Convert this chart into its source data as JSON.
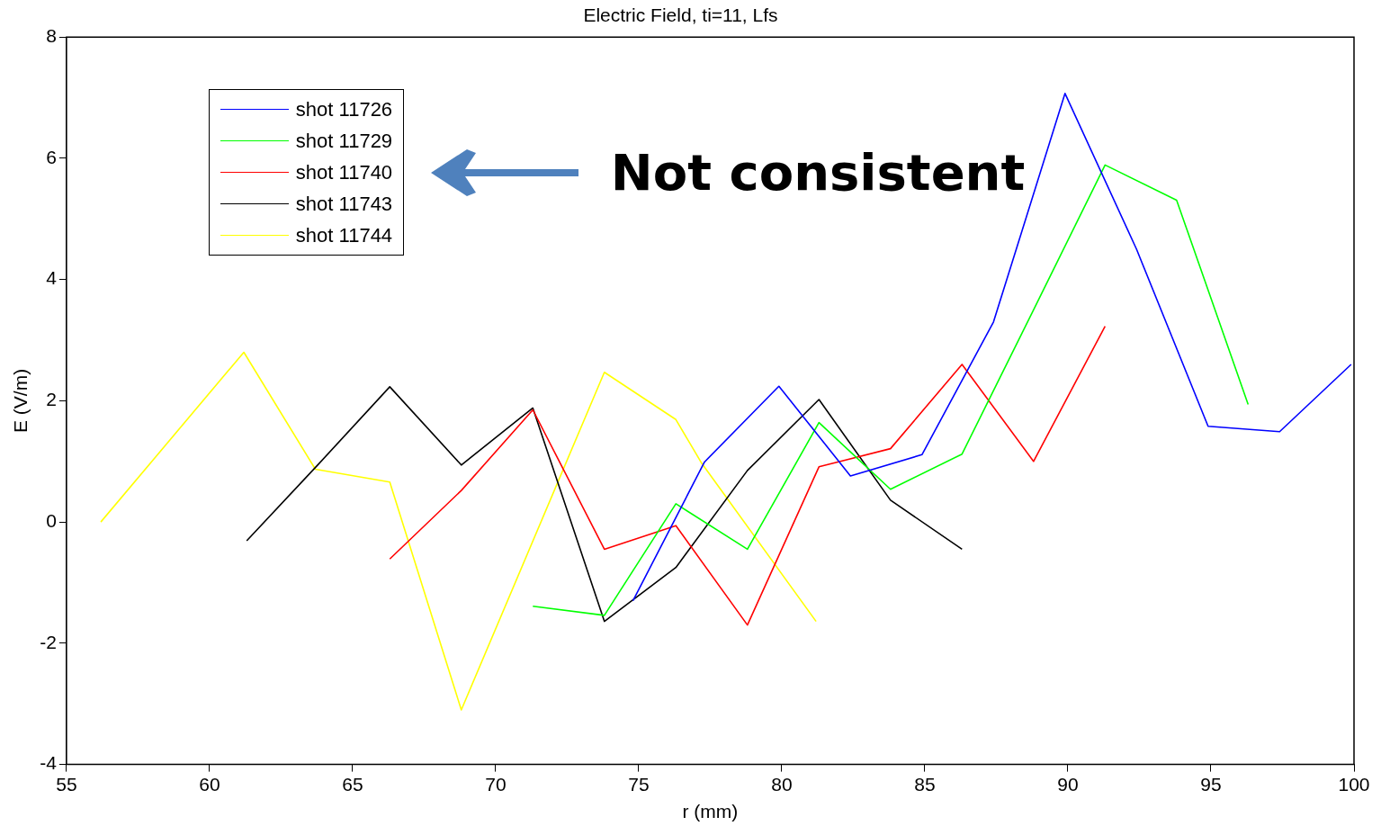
{
  "chart_data": {
    "type": "line",
    "title": "Electric Field, ti=11, Lfs",
    "xlabel": "r (mm)",
    "ylabel": "E (V/m)",
    "xlim": [
      55,
      100
    ],
    "xticks": [
      55,
      60,
      65,
      70,
      75,
      80,
      85,
      90,
      95,
      100
    ],
    "ylim": [
      -4,
      8
    ],
    "yticks": [
      -4,
      -2,
      0,
      2,
      4,
      6,
      8
    ],
    "grid": false,
    "legend": "top left",
    "marker": "none",
    "line_style": "solid",
    "annotations": [
      "Not consistent"
    ],
    "series": [
      {
        "name": "shot 11726",
        "color": "#0000ff",
        "x": [
          74.8,
          77.3,
          79.9,
          82.4,
          84.9,
          87.4,
          89.9,
          92.4,
          94.9,
          97.4,
          99.9
        ],
        "values": [
          -1.3,
          0.99,
          2.24,
          0.76,
          1.11,
          3.3,
          7.07,
          4.5,
          1.58,
          1.49,
          2.6
        ]
      },
      {
        "name": "shot 11729",
        "color": "#00ff00",
        "x": [
          71.3,
          73.8,
          76.3,
          78.8,
          81.3,
          83.8,
          86.3,
          88.8,
          91.3,
          93.8,
          96.3
        ],
        "values": [
          -1.39,
          -1.54,
          0.3,
          -0.45,
          1.64,
          0.54,
          1.12,
          3.5,
          5.89,
          5.31,
          1.94
        ]
      },
      {
        "name": "shot 11740",
        "color": "#ff0000",
        "x": [
          66.3,
          68.8,
          71.3,
          73.8,
          76.3,
          78.8,
          81.3,
          83.8,
          86.3,
          88.8,
          91.3
        ],
        "values": [
          -0.61,
          0.52,
          1.85,
          -0.45,
          -0.06,
          -1.7,
          0.91,
          1.21,
          2.6,
          1.0,
          3.23
        ]
      },
      {
        "name": "shot 11743",
        "color": "#000000",
        "x": [
          61.3,
          63.8,
          66.3,
          68.8,
          71.3,
          73.8,
          76.3,
          78.8,
          81.3,
          83.8,
          86.3
        ],
        "values": [
          -0.31,
          0.95,
          2.23,
          0.94,
          1.88,
          -1.64,
          -0.75,
          0.85,
          2.02,
          0.36,
          -0.45
        ]
      },
      {
        "name": "shot 11744",
        "color": "#ffff00",
        "x": [
          56.2,
          61.2,
          63.7,
          66.3,
          68.8,
          73.8,
          76.3,
          77.2,
          81.2
        ],
        "values": [
          0,
          2.8,
          0.87,
          0.66,
          -3.1,
          2.47,
          1.69,
          0.97,
          -1.64
        ]
      }
    ]
  }
}
